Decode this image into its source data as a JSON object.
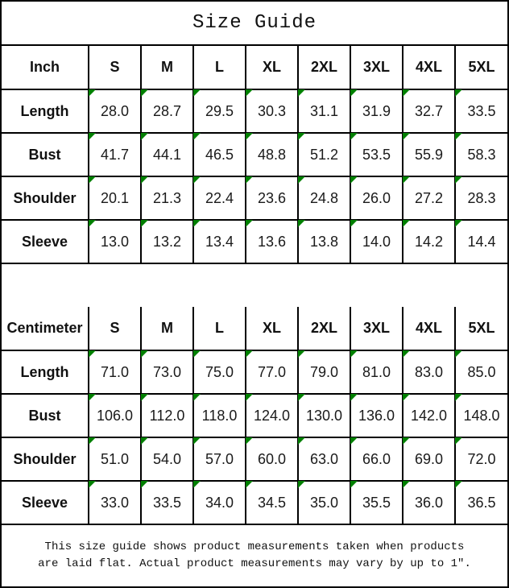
{
  "title": "Size Guide",
  "colors": {
    "flag_green": "#008000",
    "border_black": "#000000",
    "background": "#ffffff"
  },
  "tables": [
    {
      "unit_label": "Inch",
      "sizes": [
        "S",
        "M",
        "L",
        "XL",
        "2XL",
        "3XL",
        "4XL",
        "5XL"
      ],
      "rows": [
        {
          "label": "Length",
          "values": [
            "28.0",
            "28.7",
            "29.5",
            "30.3",
            "31.1",
            "31.9",
            "32.7",
            "33.5"
          ]
        },
        {
          "label": "Bust",
          "values": [
            "41.7",
            "44.1",
            "46.5",
            "48.8",
            "51.2",
            "53.5",
            "55.9",
            "58.3"
          ]
        },
        {
          "label": "Shoulder",
          "values": [
            "20.1",
            "21.3",
            "22.4",
            "23.6",
            "24.8",
            "26.0",
            "27.2",
            "28.3"
          ]
        },
        {
          "label": "Sleeve",
          "values": [
            "13.0",
            "13.2",
            "13.4",
            "13.6",
            "13.8",
            "14.0",
            "14.2",
            "14.4"
          ]
        }
      ]
    },
    {
      "unit_label": "Centimeter",
      "sizes": [
        "S",
        "M",
        "L",
        "XL",
        "2XL",
        "3XL",
        "4XL",
        "5XL"
      ],
      "rows": [
        {
          "label": "Length",
          "values": [
            "71.0",
            "73.0",
            "75.0",
            "77.0",
            "79.0",
            "81.0",
            "83.0",
            "85.0"
          ]
        },
        {
          "label": "Bust",
          "values": [
            "106.0",
            "112.0",
            "118.0",
            "124.0",
            "130.0",
            "136.0",
            "142.0",
            "148.0"
          ]
        },
        {
          "label": "Shoulder",
          "values": [
            "51.0",
            "54.0",
            "57.0",
            "60.0",
            "63.0",
            "66.0",
            "69.0",
            "72.0"
          ]
        },
        {
          "label": "Sleeve",
          "values": [
            "33.0",
            "33.5",
            "34.0",
            "34.5",
            "35.0",
            "35.5",
            "36.0",
            "36.5"
          ]
        }
      ]
    }
  ],
  "footer": {
    "line1": "This size guide shows product measurements taken when products",
    "line2": "are laid flat. Actual product measurements may vary by up to 1″."
  }
}
